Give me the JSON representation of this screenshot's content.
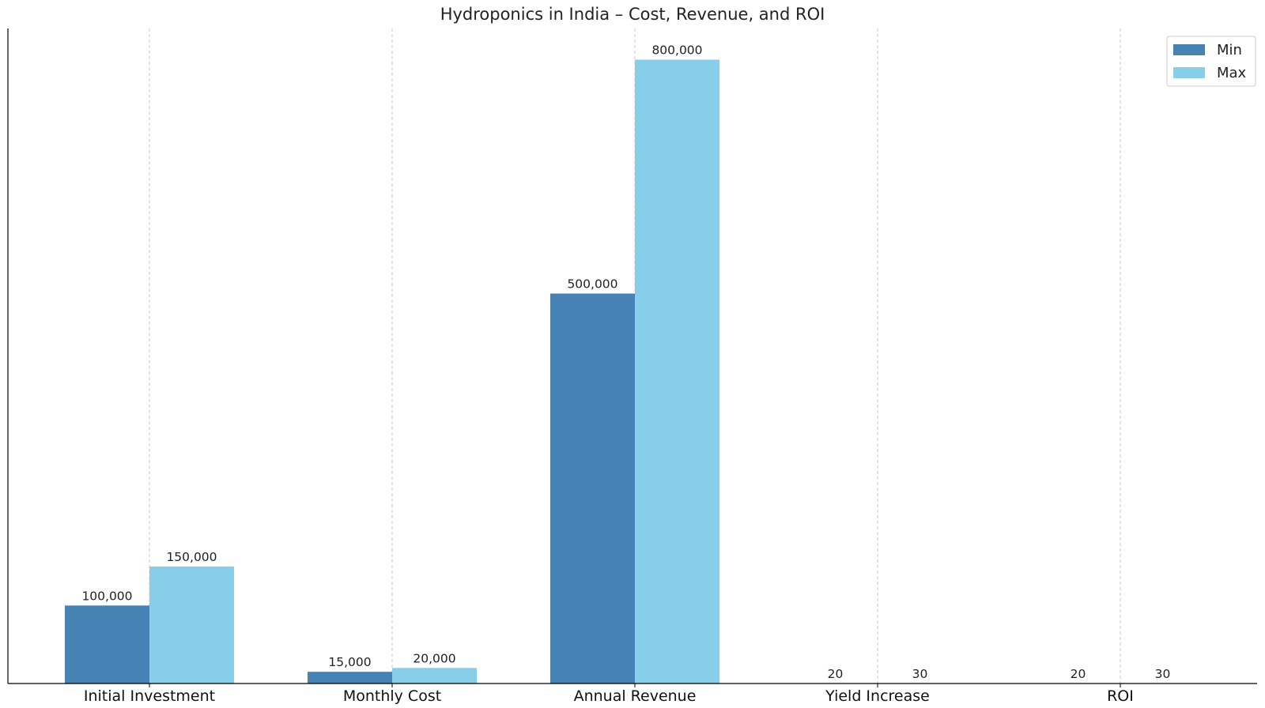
{
  "chart_data": {
    "type": "bar",
    "title": "Hydroponics in India – Cost, Revenue, and ROI",
    "xlabel": "",
    "ylabel": "",
    "categories": [
      "Initial Investment",
      "Monthly Cost",
      "Annual Revenue",
      "Yield Increase",
      "ROI"
    ],
    "series": [
      {
        "name": "Min",
        "color": "#4682b4",
        "values": [
          100000,
          15000,
          500000,
          20,
          20
        ],
        "labels": [
          "100,000",
          "15,000",
          "500,000",
          "20",
          "20"
        ]
      },
      {
        "name": "Max",
        "color": "#87ceeb",
        "values": [
          150000,
          20000,
          800000,
          30,
          30
        ],
        "labels": [
          "150,000",
          "20,000",
          "800,000",
          "30",
          "30"
        ]
      }
    ],
    "ylim": [
      0,
      840000
    ],
    "grid": "vertical dashed",
    "legend": "top-right"
  }
}
